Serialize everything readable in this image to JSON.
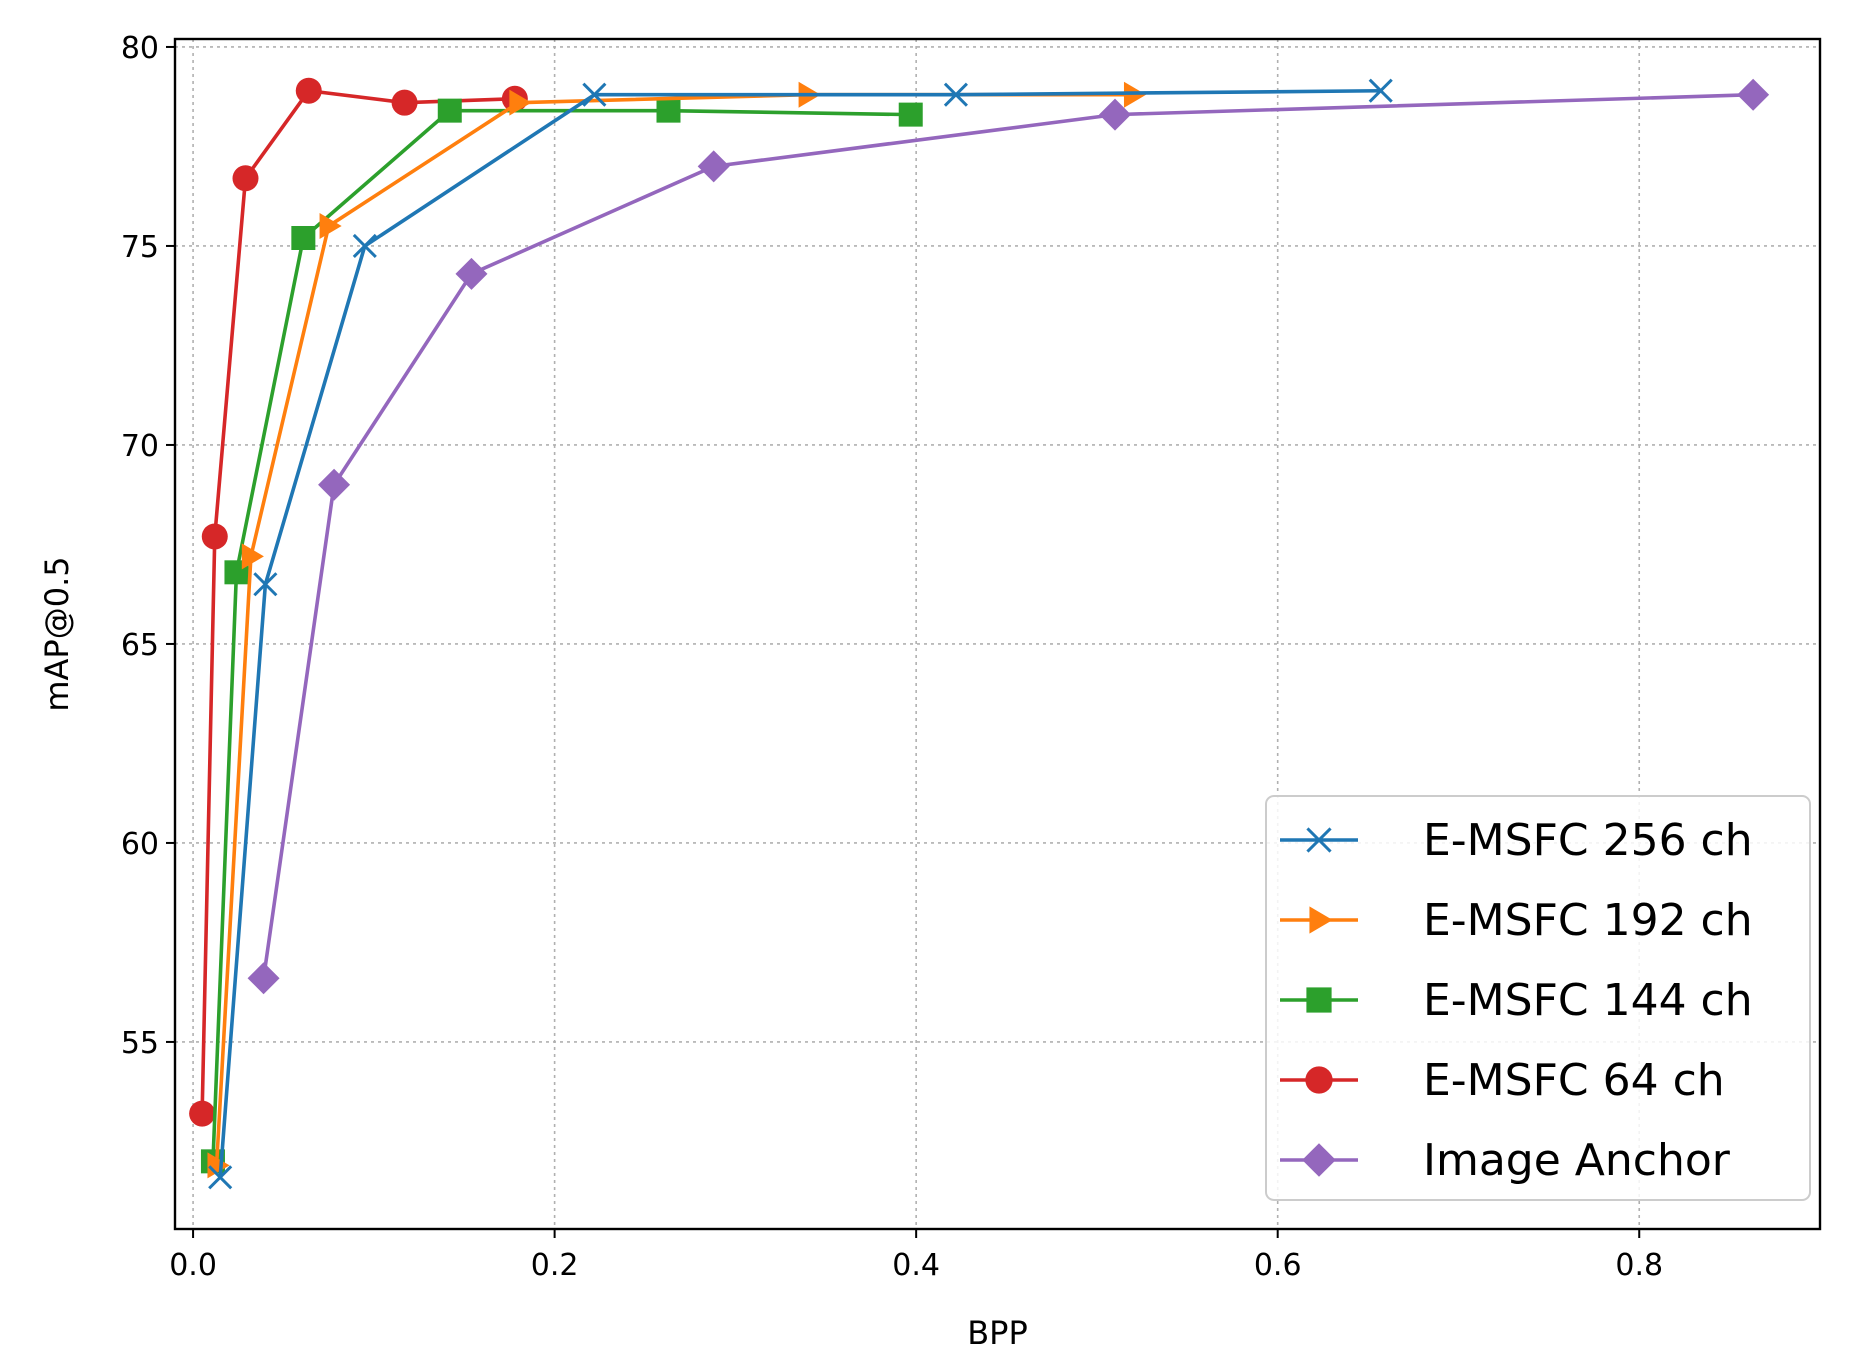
{
  "chart_data": {
    "type": "line",
    "title": "",
    "xlabel": "BPP",
    "ylabel": "mAP@0.5",
    "xlim": [
      -0.01,
      0.9
    ],
    "ylim": [
      50.3,
      80.2
    ],
    "xticks": [
      0.0,
      0.2,
      0.4,
      0.6,
      0.8
    ],
    "xtick_labels": [
      "0.0",
      "0.2",
      "0.4",
      "0.6",
      "0.8"
    ],
    "yticks": [
      55,
      60,
      65,
      70,
      75,
      80
    ],
    "ytick_labels": [
      "55",
      "60",
      "65",
      "70",
      "75",
      "80"
    ],
    "grid": true,
    "legend_position": "lower-right",
    "series": [
      {
        "name": "E-MSFC 256 ch",
        "color": "#1f77b4",
        "marker": "x",
        "x": [
          0.015,
          0.04,
          0.095,
          0.222,
          0.422,
          0.657
        ],
        "y": [
          51.6,
          66.5,
          75.0,
          78.8,
          78.8,
          78.9
        ]
      },
      {
        "name": "E-MSFC 192 ch",
        "color": "#ff7f0e",
        "marker": "triangle-right",
        "x": [
          0.013,
          0.032,
          0.075,
          0.18,
          0.34,
          0.52
        ],
        "y": [
          51.9,
          67.2,
          75.5,
          78.6,
          78.8,
          78.8
        ]
      },
      {
        "name": "E-MSFC 144 ch",
        "color": "#2ca02c",
        "marker": "square",
        "x": [
          0.011,
          0.024,
          0.061,
          0.142,
          0.263,
          0.397
        ],
        "y": [
          52.0,
          66.8,
          75.2,
          78.4,
          78.4,
          78.3
        ]
      },
      {
        "name": "E-MSFC 64 ch",
        "color": "#d62728",
        "marker": "circle",
        "x": [
          0.005,
          0.012,
          0.029,
          0.064,
          0.117,
          0.178
        ],
        "y": [
          53.2,
          67.7,
          76.7,
          78.9,
          78.6,
          78.7
        ]
      },
      {
        "name": "Image Anchor",
        "color": "#9467bd",
        "marker": "diamond",
        "x": [
          0.039,
          0.078,
          0.154,
          0.288,
          0.51,
          0.863
        ],
        "y": [
          56.6,
          69.0,
          74.3,
          77.0,
          78.3,
          78.8
        ]
      }
    ]
  }
}
